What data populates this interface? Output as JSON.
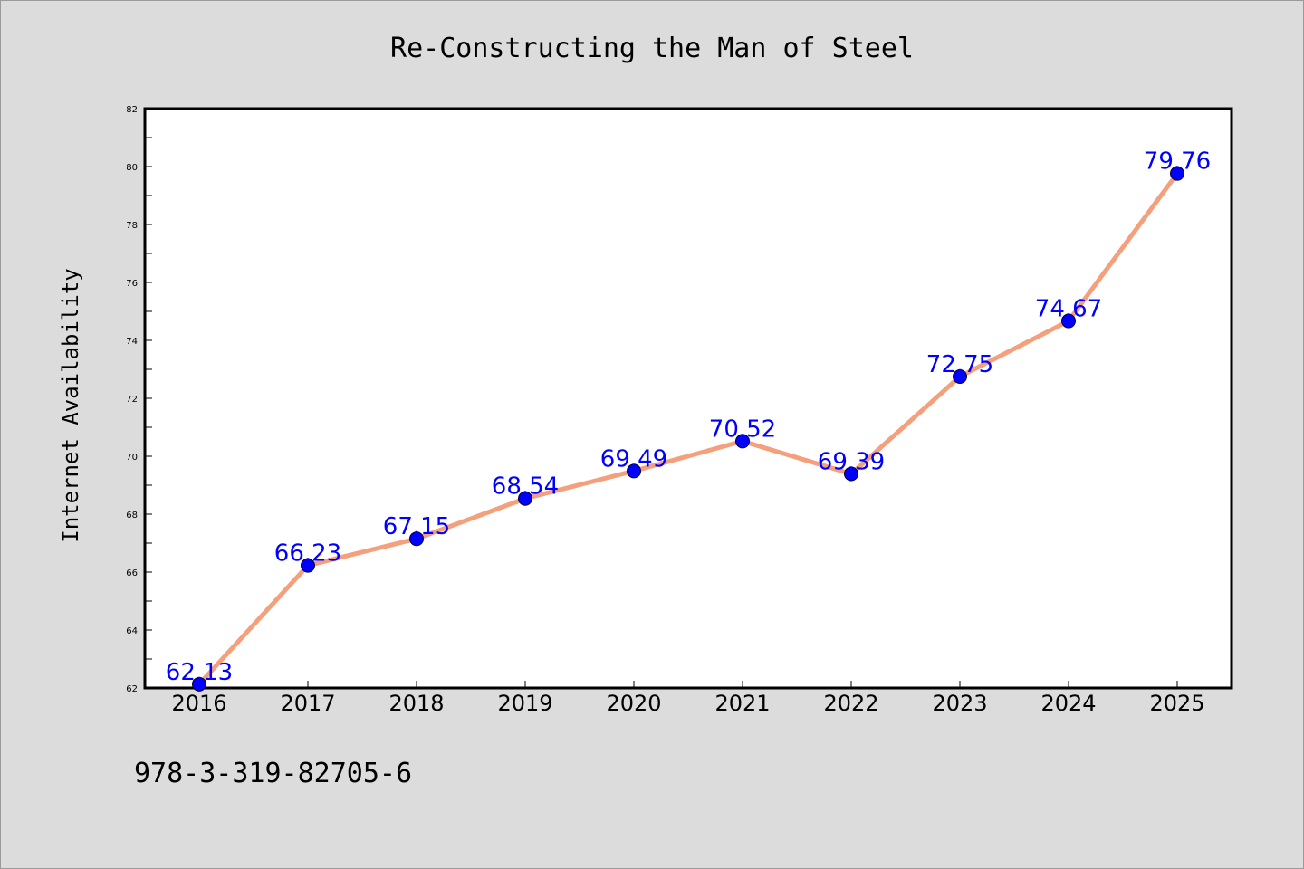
{
  "chart_data": {
    "type": "line",
    "title": "Re-Constructing the Man of Steel",
    "xlabel": "",
    "ylabel": "Internet Availability",
    "categories": [
      "2016",
      "2017",
      "2018",
      "2019",
      "2020",
      "2021",
      "2022",
      "2023",
      "2024",
      "2025"
    ],
    "values": [
      62.13,
      66.23,
      67.15,
      68.54,
      69.49,
      70.52,
      69.39,
      72.75,
      74.67,
      79.76
    ],
    "data_labels": [
      "62.13",
      "66.23",
      "67.15",
      "68.54",
      "69.49",
      "70.52",
      "69.39",
      "72.75",
      "74.67",
      "79.76"
    ],
    "ylim": [
      62,
      82
    ],
    "yticks": [
      62,
      64,
      66,
      68,
      70,
      72,
      74,
      76,
      78,
      80,
      82
    ],
    "grid": false,
    "legend": "none",
    "line_color": "#f4a07c",
    "marker_color": "#0000ff"
  },
  "footer_text": "978-3-319-82705-6"
}
